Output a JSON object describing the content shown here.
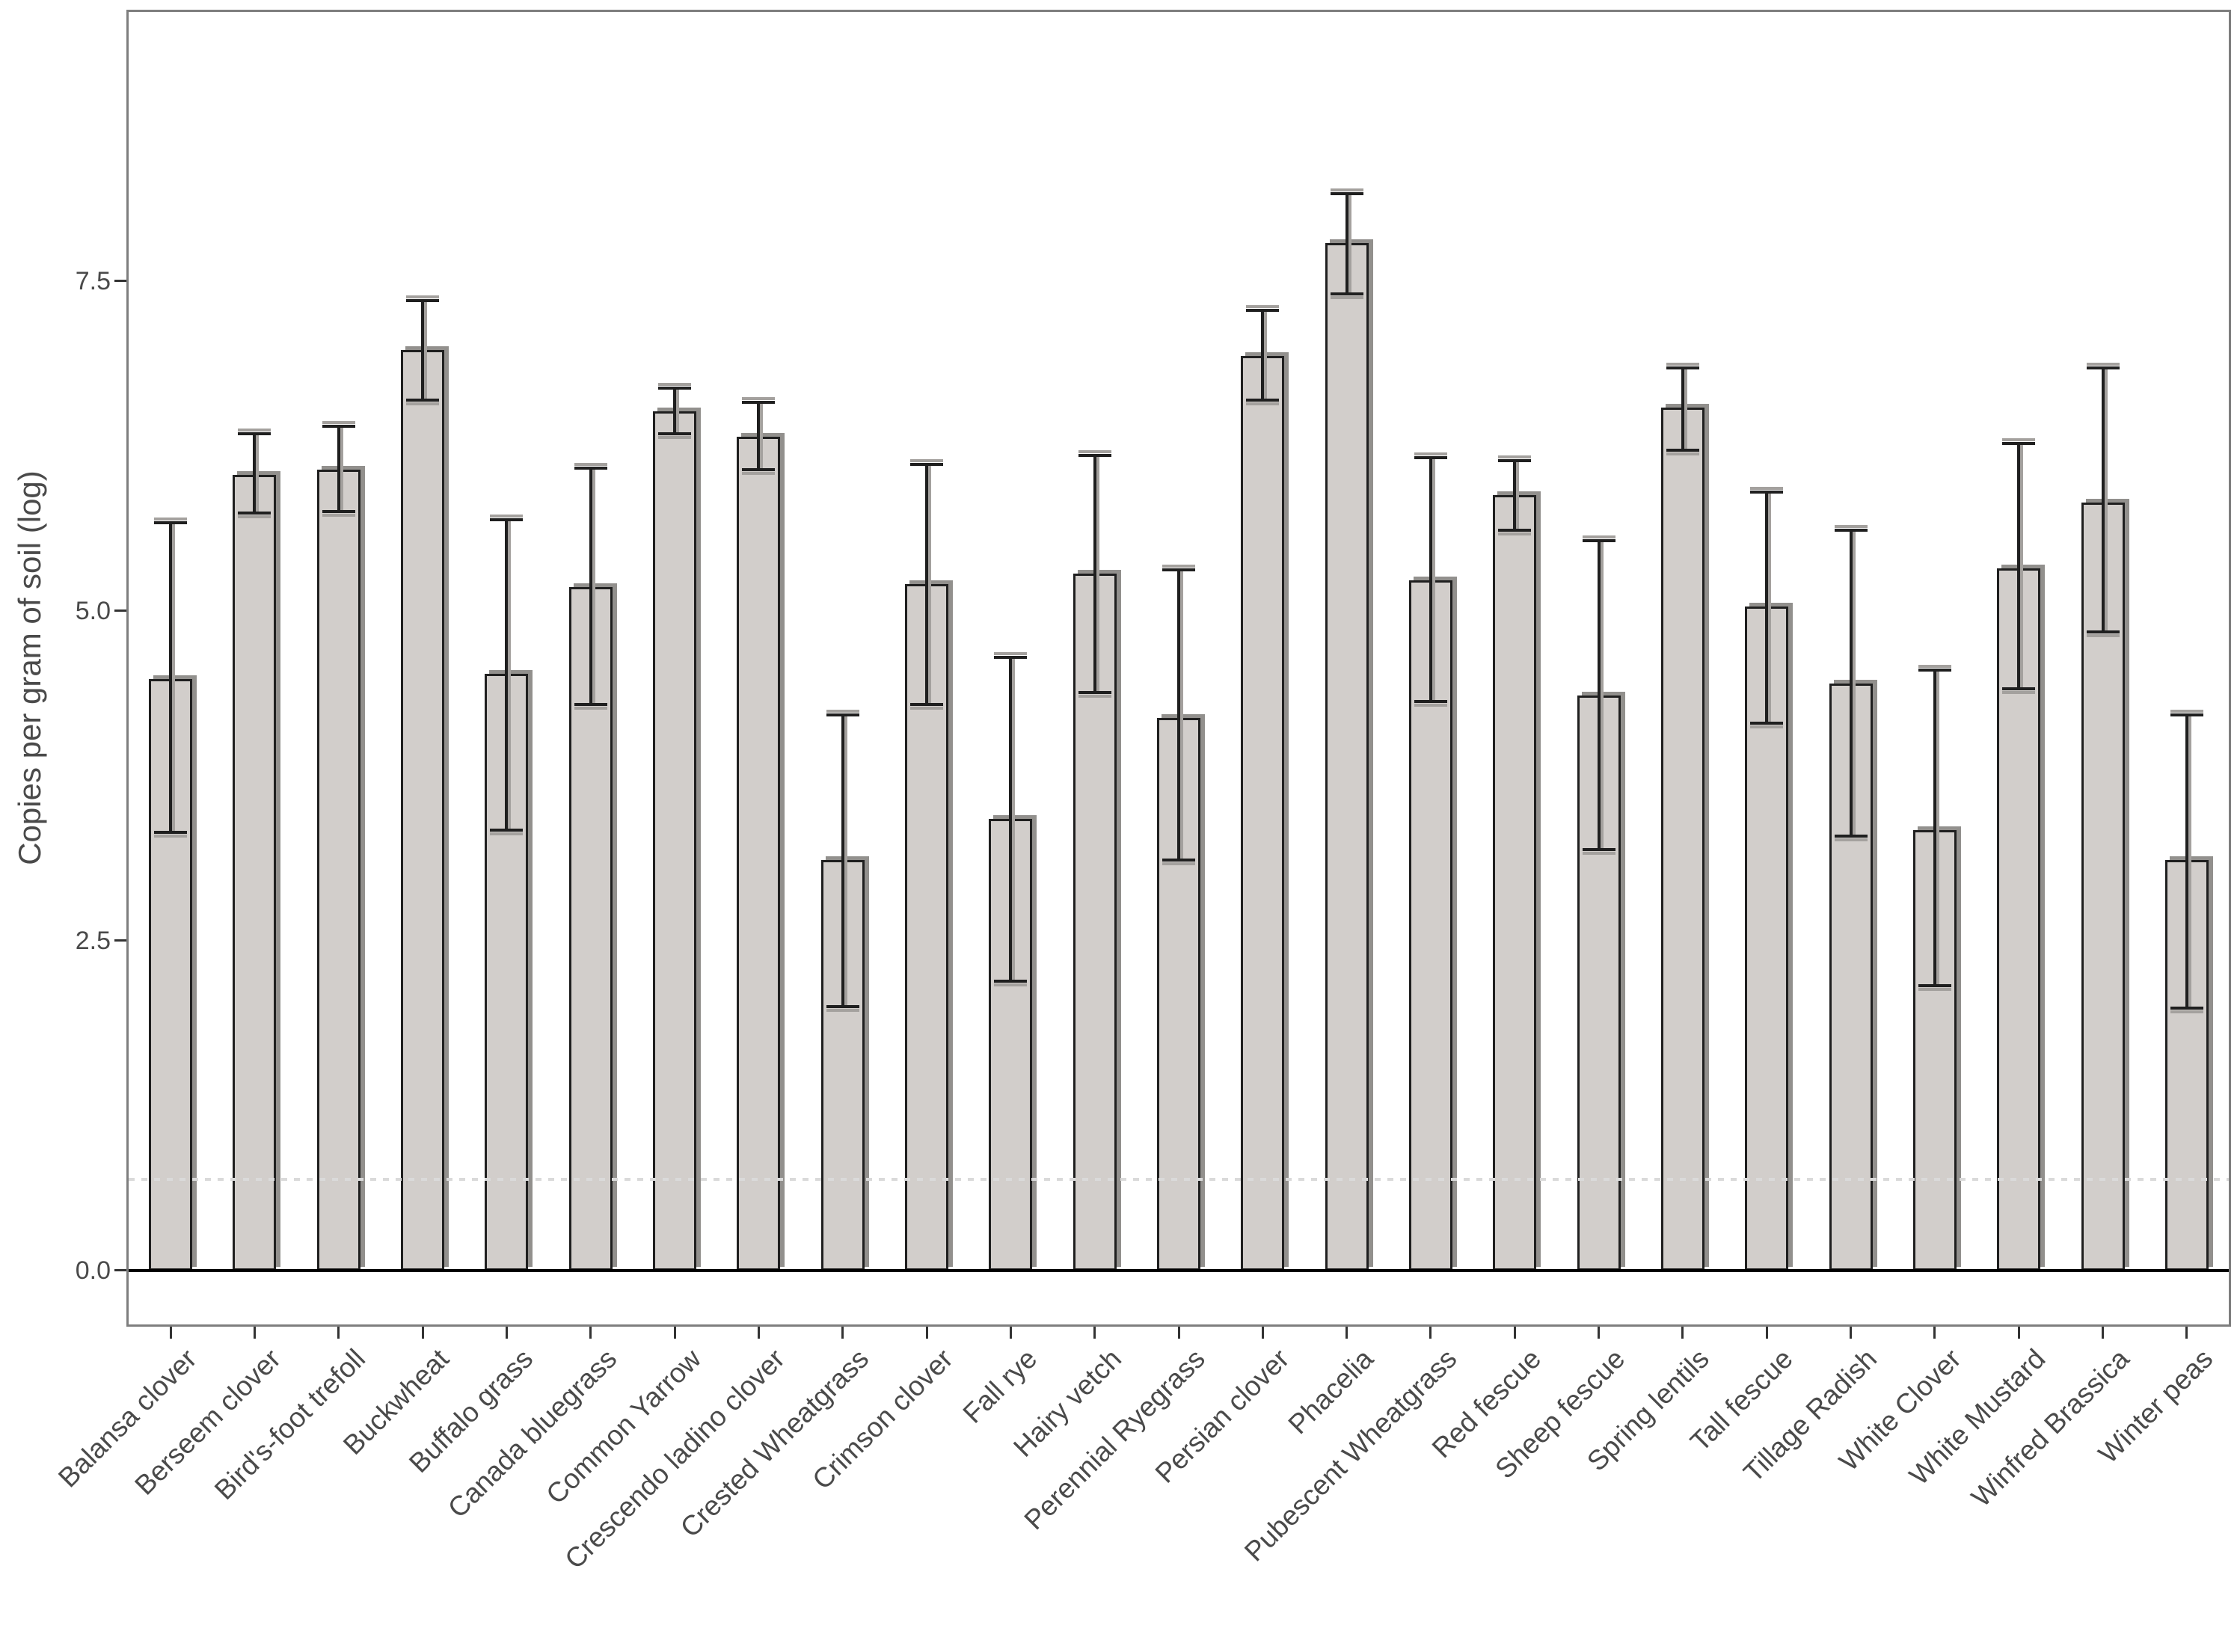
{
  "figure": {
    "background": "#ffffff"
  },
  "chart_data": {
    "type": "bar",
    "title": "",
    "xlabel": "",
    "ylabel": "Copies per gram of soil (log)",
    "ylim": [
      -0.41,
      9.54
    ],
    "grid": false,
    "legend": false,
    "yticks": [
      {
        "label": "0.0",
        "value": 0
      },
      {
        "label": "2.5",
        "value": 2.5
      },
      {
        "label": "5.0",
        "value": 5
      },
      {
        "label": "7.5",
        "value": 7.5
      }
    ],
    "reference_line": {
      "value": 0.69,
      "style": "dotted"
    },
    "categories": [
      "Balansa clover",
      "Berseem clover",
      "Bird's-foot trefoll",
      "Buckwheat",
      "Buffalo grass",
      "Canada bluegrass",
      "Common Yarrow",
      "Crescendo ladino clover",
      "Crested Wheatgrass",
      "Crimson clover",
      "Fall rye",
      "Hairy vetch",
      "Perennial Ryegrass",
      "Persian clover",
      "Phacelia",
      "Pubescent Wheatgrass",
      "Red fescue",
      "Sheep fescue",
      "Spring lentils",
      "Tall fescue",
      "Tillage Radish",
      "White Clover",
      "White Mustard",
      "Winfred Brassica",
      "Winter peas"
    ],
    "series": [
      {
        "name": "Copies per gram of soil (log)",
        "values": [
          4.48,
          6.03,
          6.07,
          6.98,
          4.52,
          5.18,
          6.51,
          6.32,
          3.11,
          5.2,
          3.42,
          5.28,
          4.19,
          6.93,
          7.79,
          5.23,
          5.88,
          4.36,
          6.54,
          5.03,
          4.45,
          3.34,
          5.32,
          5.82,
          3.11
        ],
        "error_low": [
          3.32,
          5.74,
          5.75,
          6.6,
          3.34,
          4.29,
          6.34,
          6.07,
          2.0,
          4.29,
          2.19,
          4.38,
          3.11,
          6.6,
          7.4,
          4.31,
          5.61,
          3.19,
          6.22,
          4.15,
          3.29,
          2.16,
          4.41,
          4.84,
          1.99
        ],
        "error_high": [
          5.67,
          6.34,
          6.4,
          7.35,
          5.69,
          6.08,
          6.69,
          6.58,
          4.21,
          6.11,
          4.65,
          6.18,
          5.31,
          7.28,
          8.16,
          6.16,
          6.14,
          5.53,
          6.84,
          5.9,
          5.61,
          4.55,
          6.27,
          6.84,
          4.21
        ]
      }
    ]
  },
  "colors": {
    "bar_fill": "#d2cecb",
    "bar_outline": "#1f1f1f",
    "bar_shadow": "#92908d",
    "error_bar": "#1f1f1f",
    "error_bar_echo": "#a4a19e",
    "panel_border": "#7e7e7e",
    "baseline": "#000000",
    "reference_line": "#dadada",
    "axis_text": "#4a4a4a",
    "tick_mark": "#333333"
  }
}
